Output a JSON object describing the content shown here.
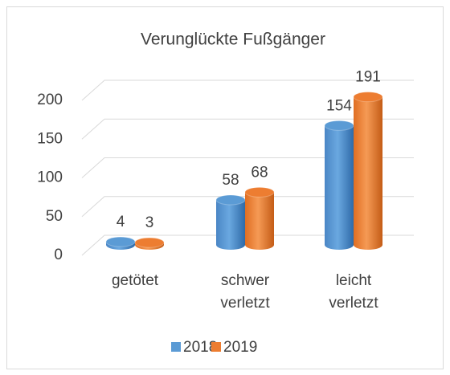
{
  "chart_data": {
    "type": "bar",
    "title": "Verunglückte Fußgänger",
    "categories": [
      "getötet",
      "schwer verletzt",
      "leicht verletzt"
    ],
    "series": [
      {
        "name": "2018",
        "color": "#5b9bd5",
        "values": [
          4,
          58,
          154
        ]
      },
      {
        "name": "2019",
        "color": "#ed7d31",
        "values": [
          3,
          68,
          191
        ]
      }
    ],
    "ylim": [
      0,
      200
    ],
    "yticks": [
      0,
      50,
      100,
      150,
      200
    ],
    "grid": true,
    "legend": "bottom"
  }
}
